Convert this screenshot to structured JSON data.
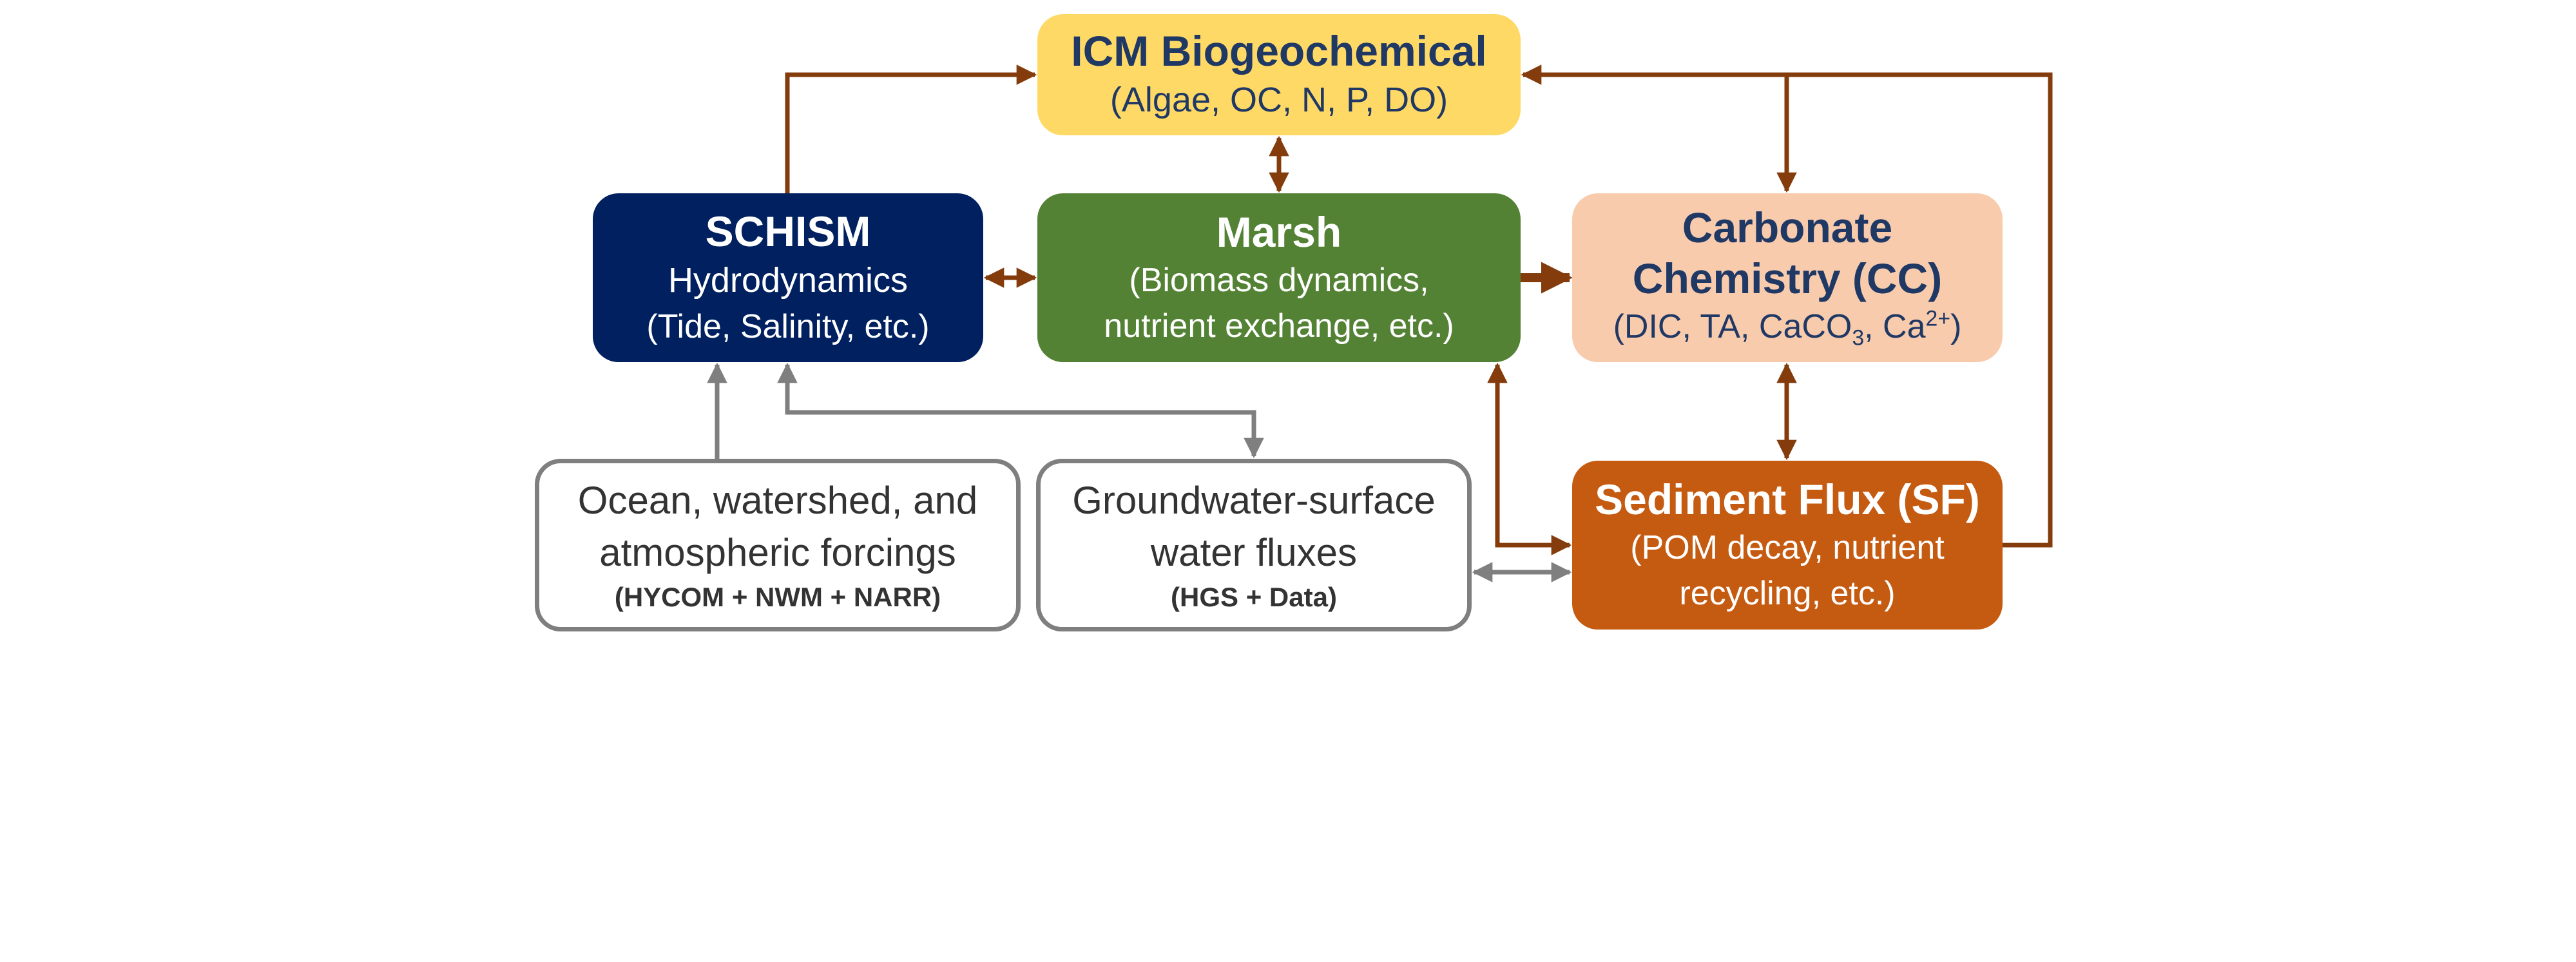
{
  "colors": {
    "icm": "#ffd966",
    "schism": "#002060",
    "marsh": "#548235",
    "carbonate": "#f8cbad",
    "sediment": "#c55a11",
    "brown_arrow": "#843c0c",
    "gray_arrow": "#7f7f7f",
    "dark_text": "#1f3864"
  },
  "icm": {
    "title": "ICM Biogeochemical",
    "subtitle": "(Algae, OC, N, P, DO)"
  },
  "schism": {
    "title": "SCHISM",
    "line1": "Hydrodynamics",
    "line2": "(Tide, Salinity, etc.)"
  },
  "marsh": {
    "title": "Marsh",
    "line1": "(Biomass dynamics,",
    "line2": "nutrient exchange, etc.)"
  },
  "carbonate": {
    "title_line1": "Carbonate",
    "title_line2": "Chemistry (CC)",
    "species": {
      "open": "(DIC, TA, CaCO",
      "carbonate_sub": "3",
      "mid": ", Ca",
      "calcium_sup": "2+",
      "close": ")"
    }
  },
  "sediment": {
    "title": "Sediment Flux (SF)",
    "line1": "(POM decay, nutrient",
    "line2": "recycling, etc.)"
  },
  "ocean": {
    "line1": "Ocean, watershed, and",
    "line2": "atmospheric forcings",
    "source": "(HYCOM + NWM + NARR)"
  },
  "groundwater": {
    "line1": "Groundwater-surface",
    "line2": "water fluxes",
    "source": "(HGS + Data)"
  }
}
